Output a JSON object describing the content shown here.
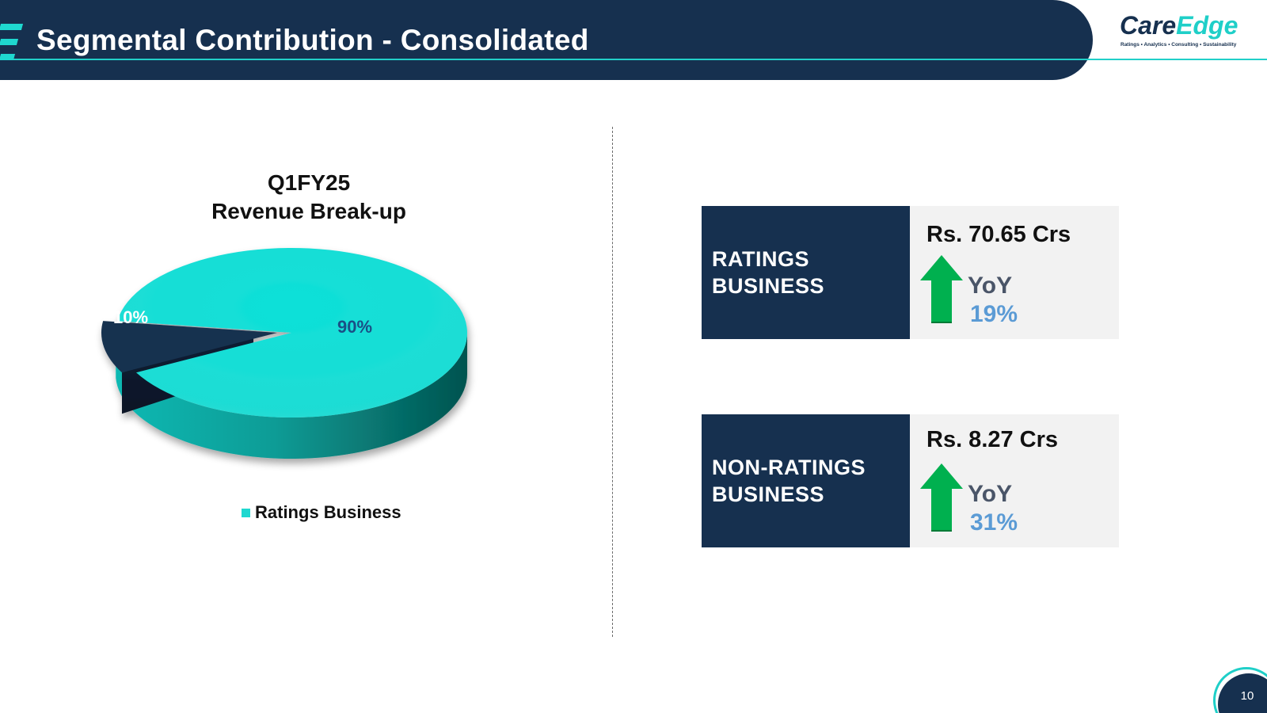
{
  "header": {
    "title": "Segmental Contribution - Consolidated"
  },
  "logo": {
    "part1": "Care",
    "part2": "Edge",
    "tagline": "Ratings  •  Analytics  •  Consulting  •  Sustainability"
  },
  "colors": {
    "navy": "#16304f",
    "teal": "#1fd8d0",
    "arrow_green": "#00b04f",
    "yoy_blue": "#5b9bd5"
  },
  "chart_data": {
    "type": "pie",
    "title_line1": "Q1FY25",
    "title_line2": "Revenue Break-up",
    "slices": [
      {
        "name": "Ratings Business",
        "value": 90,
        "label": "90%",
        "color": "#1fd8d0"
      },
      {
        "name": "",
        "value": 10,
        "label": "10%",
        "color": "#16304f"
      }
    ],
    "legend": [
      {
        "label": "Ratings Business",
        "color": "#1fd8d0"
      }
    ],
    "legend_position": "bottom"
  },
  "cards": [
    {
      "label_line1": "RATINGS",
      "label_line2": "BUSINESS",
      "amount": "Rs. 70.65 Crs",
      "yoy_label": "YoY",
      "yoy_value": "19%",
      "icon": "up-arrow-icon"
    },
    {
      "label_line1": "NON-RATINGS",
      "label_line2": "BUSINESS",
      "amount": "Rs. 8.27 Crs",
      "yoy_label": "YoY",
      "yoy_value": "31%",
      "icon": "up-arrow-icon"
    }
  ],
  "page_number": "10"
}
